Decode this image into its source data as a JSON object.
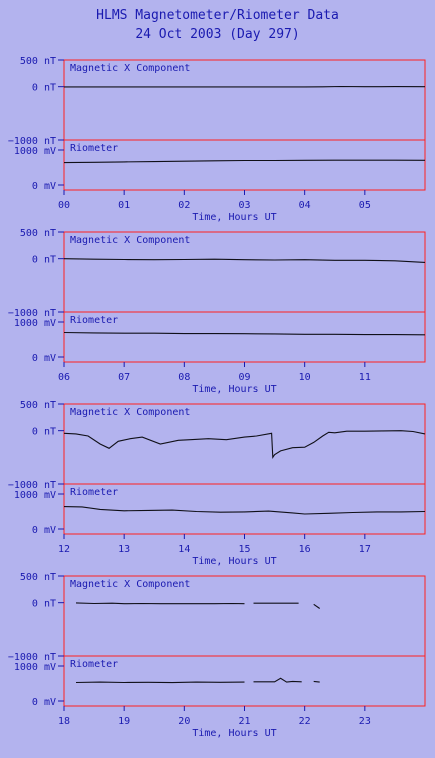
{
  "title_line1": "HLMS Magnetometer/Riometer Data",
  "title_line2": "24 Oct 2003 (Day 297)",
  "colors": {
    "background": "#b3b3ee",
    "frame": "#ff2020",
    "text": "#1a1ab0",
    "trace": "#101018"
  },
  "chart_data": [
    {
      "type": "line",
      "panel": "Magnetic X Component",
      "xlabel": "Time, Hours UT",
      "xlim": [
        0,
        6
      ],
      "x_ticks": [
        "00",
        "01",
        "02",
        "03",
        "04",
        "05"
      ],
      "ylim": [
        -1000,
        500
      ],
      "y_tick_labels": [
        {
          "v": 500,
          "label": "500 nT"
        },
        {
          "v": 0,
          "label": "0 nT"
        },
        {
          "v": -1000,
          "label": "-1000 nT"
        }
      ],
      "x": [
        0,
        0.5,
        1,
        1.5,
        2,
        2.5,
        3,
        3.5,
        4,
        4.3,
        4.6,
        5,
        5.5,
        6
      ],
      "y": [
        -5,
        -5,
        -5,
        -5,
        -5,
        -5,
        -5,
        -5,
        -5,
        -2,
        3,
        0,
        2,
        0
      ],
      "rio": {
        "panel": "Riometer",
        "ylim": [
          0,
          1000
        ],
        "y_tick_labels": [
          {
            "v": 1000,
            "label": "1000 mV"
          },
          {
            "v": 0,
            "label": "0 mV"
          }
        ],
        "x": [
          0,
          0.5,
          1,
          1.5,
          2,
          2.5,
          3,
          3.5,
          4,
          4.5,
          5,
          5.5,
          6
        ],
        "y": [
          640,
          650,
          660,
          670,
          680,
          690,
          700,
          700,
          705,
          710,
          710,
          710,
          705
        ]
      }
    },
    {
      "type": "line",
      "panel": "Magnetic X Component",
      "xlabel": "Time, Hours UT",
      "xlim": [
        6,
        12
      ],
      "x_ticks": [
        "06",
        "07",
        "08",
        "09",
        "10",
        "11"
      ],
      "ylim": [
        -1000,
        500
      ],
      "y_tick_labels": [
        {
          "v": 500,
          "label": "500 nT"
        },
        {
          "v": 0,
          "label": "0 nT"
        },
        {
          "v": -1000,
          "label": "-1000 nT"
        }
      ],
      "x": [
        6,
        6.5,
        7,
        7.5,
        8,
        8.5,
        9,
        9.5,
        10,
        10.5,
        11,
        11.5,
        12
      ],
      "y": [
        0,
        -10,
        -15,
        -20,
        -15,
        -10,
        -20,
        -25,
        -20,
        -30,
        -30,
        -40,
        -70
      ],
      "rio": {
        "panel": "Riometer",
        "ylim": [
          0,
          1000
        ],
        "y_tick_labels": [
          {
            "v": 1000,
            "label": "1000 mV"
          },
          {
            "v": 0,
            "label": "0 mV"
          }
        ],
        "x": [
          6,
          6.5,
          7,
          7.5,
          8,
          8.5,
          9,
          9.5,
          10,
          10.5,
          11,
          11.5,
          12
        ],
        "y": [
          700,
          690,
          680,
          680,
          670,
          670,
          665,
          660,
          650,
          650,
          640,
          640,
          635
        ]
      }
    },
    {
      "type": "line",
      "panel": "Magnetic X Component",
      "xlabel": "Time, Hours UT",
      "xlim": [
        12,
        18
      ],
      "x_ticks": [
        "12",
        "13",
        "14",
        "15",
        "16",
        "17"
      ],
      "ylim": [
        -1000,
        500
      ],
      "y_tick_labels": [
        {
          "v": 500,
          "label": "500 nT"
        },
        {
          "v": 0,
          "label": "0 nT"
        },
        {
          "v": -1000,
          "label": "-1000 nT"
        }
      ],
      "x": [
        12,
        12.2,
        12.4,
        12.6,
        12.75,
        12.9,
        13.1,
        13.3,
        13.6,
        13.9,
        14.1,
        14.4,
        14.7,
        15.0,
        15.2,
        15.45,
        15.47,
        15.5,
        15.6,
        15.8,
        16.0,
        16.15,
        16.3,
        16.4,
        16.5,
        16.7,
        17.0,
        17.3,
        17.6,
        17.8,
        18
      ],
      "y": [
        -50,
        -60,
        -100,
        -250,
        -330,
        -200,
        -150,
        -120,
        -250,
        -180,
        -170,
        -150,
        -170,
        -120,
        -100,
        -50,
        -500,
        -450,
        -380,
        -320,
        -310,
        -220,
        -100,
        -30,
        -40,
        -10,
        -10,
        -5,
        0,
        -15,
        -60
      ],
      "rio": {
        "panel": "Riometer",
        "ylim": [
          0,
          1000
        ],
        "y_tick_labels": [
          {
            "v": 1000,
            "label": "1000 mV"
          },
          {
            "v": 0,
            "label": "0 mV"
          }
        ],
        "x": [
          12,
          12.3,
          12.6,
          13,
          13.4,
          13.8,
          14.2,
          14.6,
          15,
          15.4,
          15.8,
          16,
          16.4,
          16.8,
          17.2,
          17.6,
          18
        ],
        "y": [
          640,
          630,
          560,
          520,
          530,
          540,
          500,
          480,
          490,
          510,
          460,
          430,
          450,
          470,
          490,
          490,
          500
        ]
      }
    },
    {
      "type": "line",
      "panel": "Magnetic X Component",
      "xlabel": "Time, Hours UT",
      "xlim": [
        18,
        24
      ],
      "x_ticks": [
        "18",
        "19",
        "20",
        "21",
        "22",
        "23"
      ],
      "ylim": [
        -1000,
        500
      ],
      "y_tick_labels": [
        {
          "v": 500,
          "label": "500 nT"
        },
        {
          "v": 0,
          "label": "0 nT"
        },
        {
          "v": -1000,
          "label": "-1000 nT"
        }
      ],
      "segments": [
        {
          "x": [
            18.2,
            18.5,
            18.8,
            19.0,
            19.3,
            19.6,
            19.9,
            20.2,
            20.5,
            20.8,
            21.0
          ],
          "y": [
            -5,
            -15,
            -10,
            -20,
            -15,
            -20,
            -20,
            -20,
            -20,
            -15,
            -20
          ]
        },
        {
          "x": [
            21.15,
            21.5,
            21.9
          ],
          "y": [
            -10,
            -10,
            -10
          ]
        },
        {
          "x": [
            22.15,
            22.25
          ],
          "y": [
            -30,
            -110
          ]
        }
      ],
      "rio": {
        "panel": "Riometer",
        "ylim": [
          0,
          1000
        ],
        "y_tick_labels": [
          {
            "v": 1000,
            "label": "1000 mV"
          },
          {
            "v": 0,
            "label": "0 mV"
          }
        ],
        "segments": [
          {
            "x": [
              18.2,
              18.6,
              19.0,
              19.4,
              19.8,
              20.2,
              20.6,
              21.0
            ],
            "y": [
              530,
              540,
              530,
              535,
              525,
              540,
              535,
              540
            ]
          },
          {
            "x": [
              21.15,
              21.5,
              21.6,
              21.7,
              21.8,
              21.95
            ],
            "y": [
              550,
              550,
              650,
              540,
              560,
              550
            ]
          },
          {
            "x": [
              22.15,
              22.25
            ],
            "y": [
              560,
              540
            ]
          }
        ]
      }
    }
  ]
}
